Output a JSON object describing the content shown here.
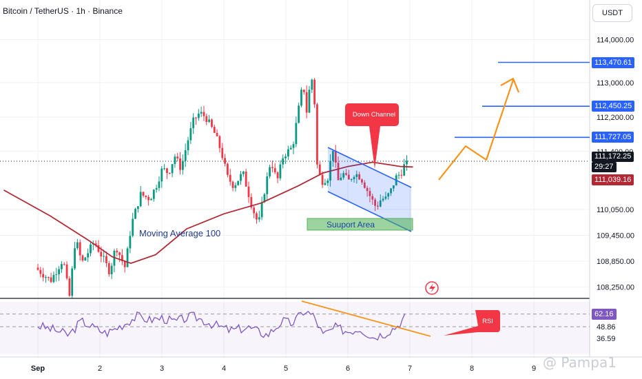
{
  "header": {
    "symbol_title": "Bitcoin / TetherUS · 1h · Binance",
    "currency": "USDT"
  },
  "watermark": "@ Pampa1",
  "annotations": {
    "moving_average": "Moving Average 100",
    "support": "Suuport Area",
    "down_channel": "Down Channel",
    "rsi_badge": "RSI"
  },
  "colors": {
    "candle_up": "#089981",
    "candle_down": "#f23645",
    "ma_line": "#b22833",
    "target_line": "#2962ff",
    "arrow": "#f7931a",
    "rsi_line": "#7e57c2",
    "support_box": "#4caf50",
    "callout": "#f23645"
  },
  "price_axis": {
    "ticks": [
      "114,000.00",
      "113,000.00",
      "112,200.00",
      "111,400.00",
      "110,050.00",
      "109,450.00",
      "108,850.00",
      "108,250.00"
    ],
    "labels": {
      "target3": "113,470.61",
      "target2": "112,450.25",
      "target1": "111,727.05",
      "current": "111,172.25",
      "countdown": "29:27",
      "ma_value": "111,039.16"
    }
  },
  "rsi_axis": {
    "current": "62.16",
    "level1": "48.86",
    "level2": "36.59"
  },
  "time_axis": [
    "Sep",
    "2",
    "3",
    "4",
    "5",
    "6",
    "7",
    "8",
    "9"
  ],
  "chart_data": {
    "type": "candlestick",
    "title": "Bitcoin / TetherUS · 1h · Binance",
    "ylim": [
      108000,
      114600
    ],
    "x_categories": [
      "Sep",
      "2",
      "3",
      "4",
      "5",
      "6",
      "7",
      "8",
      "9"
    ],
    "price_path": [
      [
        0,
        108700
      ],
      [
        0.25,
        108400
      ],
      [
        0.45,
        108900
      ],
      [
        0.55,
        108000
      ],
      [
        0.65,
        109400
      ],
      [
        0.75,
        108800
      ],
      [
        0.95,
        109300
      ],
      [
        1.1,
        108900
      ],
      [
        1.2,
        108600
      ],
      [
        1.3,
        109200
      ],
      [
        1.45,
        108700
      ],
      [
        1.55,
        109700
      ],
      [
        1.7,
        110400
      ],
      [
        1.85,
        110300
      ],
      [
        1.95,
        110600
      ],
      [
        2.05,
        111000
      ],
      [
        2.15,
        110900
      ],
      [
        2.25,
        111300
      ],
      [
        2.35,
        111000
      ],
      [
        2.45,
        111600
      ],
      [
        2.55,
        112100
      ],
      [
        2.65,
        112300
      ],
      [
        2.75,
        112200
      ],
      [
        2.9,
        111800
      ],
      [
        3.0,
        111400
      ],
      [
        3.1,
        110800
      ],
      [
        3.2,
        110600
      ],
      [
        3.35,
        110900
      ],
      [
        3.5,
        110100
      ],
      [
        3.6,
        109700
      ],
      [
        3.7,
        110500
      ],
      [
        3.8,
        111200
      ],
      [
        3.9,
        110700
      ],
      [
        4.0,
        111300
      ],
      [
        4.15,
        111500
      ],
      [
        4.25,
        112400
      ],
      [
        4.32,
        113000
      ],
      [
        4.38,
        112300
      ],
      [
        4.45,
        113200
      ],
      [
        4.5,
        112700
      ],
      [
        4.55,
        111000
      ],
      [
        4.62,
        110700
      ],
      [
        4.72,
        110800
      ],
      [
        4.8,
        111500
      ],
      [
        4.88,
        110700
      ],
      [
        4.96,
        110900
      ],
      [
        5.05,
        110700
      ],
      [
        5.15,
        110900
      ],
      [
        5.25,
        110800
      ],
      [
        5.32,
        110600
      ],
      [
        5.42,
        110300
      ],
      [
        5.5,
        110100
      ],
      [
        5.58,
        110300
      ],
      [
        5.66,
        110300
      ],
      [
        5.74,
        110500
      ],
      [
        5.82,
        110800
      ],
      [
        5.9,
        110900
      ],
      [
        5.96,
        111100
      ]
    ],
    "moving_average_100": [
      [
        -0.55,
        110500
      ],
      [
        0.2,
        109900
      ],
      [
        0.8,
        109350
      ],
      [
        1.2,
        108950
      ],
      [
        1.5,
        108800
      ],
      [
        1.9,
        109000
      ],
      [
        2.4,
        109600
      ],
      [
        3.0,
        109950
      ],
      [
        3.6,
        110200
      ],
      [
        4.2,
        110600
      ],
      [
        4.6,
        110900
      ],
      [
        5.0,
        111050
      ],
      [
        5.4,
        111150
      ],
      [
        5.85,
        111050
      ],
      [
        6.05,
        111039.16
      ]
    ],
    "target_levels": [
      111727.05,
      112450.25,
      113470.61
    ],
    "current_price": 111172.25,
    "ma_current": 111039.16,
    "rsi": {
      "axis_labels": [
        62.16,
        48.86,
        36.59
      ],
      "values_path": [
        [
          0,
          50
        ],
        [
          0.3,
          45
        ],
        [
          0.5,
          40
        ],
        [
          0.7,
          55
        ],
        [
          0.9,
          48
        ],
        [
          1.1,
          42
        ],
        [
          1.4,
          52
        ],
        [
          1.6,
          60
        ],
        [
          1.8,
          56
        ],
        [
          2.0,
          58
        ],
        [
          2.2,
          54
        ],
        [
          2.5,
          60
        ],
        [
          2.8,
          52
        ],
        [
          3.1,
          45
        ],
        [
          3.4,
          48
        ],
        [
          3.7,
          40
        ],
        [
          3.95,
          55
        ],
        [
          4.1,
          52
        ],
        [
          4.3,
          66
        ],
        [
          4.45,
          60
        ],
        [
          4.6,
          40
        ],
        [
          4.8,
          48
        ],
        [
          5.0,
          44
        ],
        [
          5.2,
          47
        ],
        [
          5.4,
          38
        ],
        [
          5.6,
          42
        ],
        [
          5.8,
          50
        ],
        [
          5.95,
          62.16
        ]
      ]
    }
  }
}
